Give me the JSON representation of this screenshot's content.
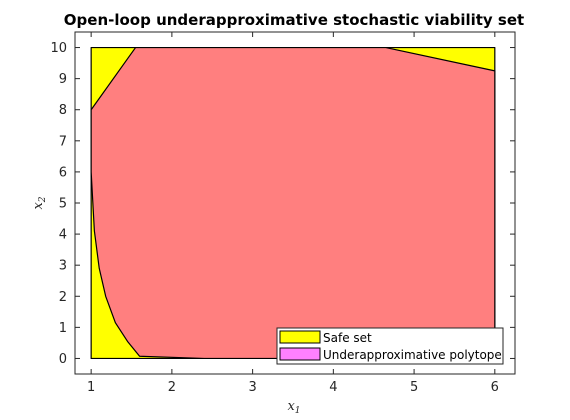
{
  "chart_data": {
    "type": "area",
    "title": "Open-loop underapproximative stochastic viability set",
    "xlabel": {
      "base": "x",
      "sub": "1"
    },
    "ylabel": {
      "base": "x",
      "sub": "2"
    },
    "xlim": [
      0.8,
      6.25
    ],
    "ylim": [
      -0.5,
      10.5
    ],
    "xticks": [
      1,
      2,
      3,
      4,
      5,
      6
    ],
    "yticks": [
      0,
      1,
      2,
      3,
      4,
      5,
      6,
      7,
      8,
      9,
      10
    ],
    "grid": false,
    "legend_placement": "bottom-right",
    "series": [
      {
        "name": "Safe set",
        "color": "#ffff00",
        "points": [
          [
            1,
            0
          ],
          [
            6,
            0
          ],
          [
            6,
            10
          ],
          [
            1,
            10
          ]
        ]
      },
      {
        "name": "Underapproximative polytope",
        "color": "#ff80ff",
        "fill_rendered": "#ff7f7f",
        "points": [
          [
            1,
            8.0
          ],
          [
            1.55,
            10.0
          ],
          [
            4.65,
            10.0
          ],
          [
            6.0,
            9.25
          ],
          [
            6.0,
            0.0
          ],
          [
            2.4,
            0.0
          ],
          [
            1.6,
            0.07
          ],
          [
            1.45,
            0.55
          ],
          [
            1.3,
            1.15
          ],
          [
            1.18,
            2.0
          ],
          [
            1.1,
            2.9
          ],
          [
            1.04,
            4.1
          ],
          [
            1.0,
            6.0
          ]
        ]
      }
    ]
  }
}
